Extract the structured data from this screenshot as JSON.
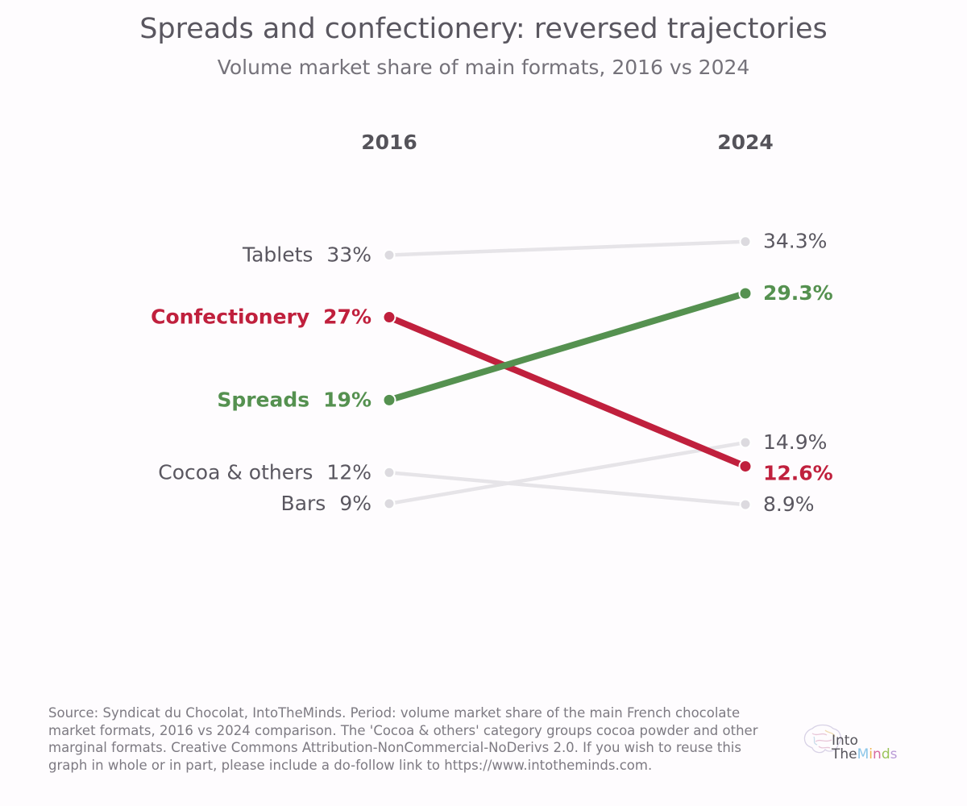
{
  "chart_data": {
    "type": "line",
    "title": "Spreads and confectionery: reversed trajectories",
    "subtitle": "Volume market share of main formats, 2016 vs 2024",
    "x": [
      "2016",
      "2024"
    ],
    "series": [
      {
        "name": "Tablets",
        "values": [
          33,
          34.3
        ],
        "start_label": "33%",
        "end_label": "34.3%",
        "highlight": false,
        "color": "#e6e4e8"
      },
      {
        "name": "Confectionery",
        "values": [
          27,
          12.6
        ],
        "start_label": "27%",
        "end_label": "12.6%",
        "highlight": true,
        "color": "#c0203d"
      },
      {
        "name": "Spreads",
        "values": [
          19,
          29.3
        ],
        "start_label": "19%",
        "end_label": "29.3%",
        "highlight": true,
        "color": "#559150"
      },
      {
        "name": "Cocoa & others",
        "values": [
          12,
          8.9
        ],
        "start_label": "12%",
        "end_label": "8.9%",
        "highlight": false,
        "color": "#e6e4e8"
      },
      {
        "name": "Bars",
        "values": [
          9,
          14.9
        ],
        "start_label": "9%",
        "end_label": "14.9%",
        "highlight": false,
        "color": "#e6e4e8"
      }
    ],
    "grid": false,
    "legend": "none"
  },
  "footer": {
    "source": "Source: Syndicat du Chocolat, IntoTheMinds. Period: volume market share of the main French chocolate market formats, 2016 vs 2024 comparison. The 'Cocoa & others' category groups cocoa powder and other marginal formats. Creative Commons Attribution-NonCommercial-NoDerivs 2.0. If you wish to reuse this graph in whole or in part, please include a do-follow link to https://www.intotheminds.com."
  },
  "logo": {
    "line1": "Into",
    "line2_parts": [
      "The",
      "M",
      "i",
      "n",
      "d",
      "s"
    ],
    "line2_colors": [
      "#55535a",
      "#8bc6e8",
      "#f0b24a",
      "#d76aa0",
      "#9ac45a",
      "#b99ad6"
    ]
  }
}
